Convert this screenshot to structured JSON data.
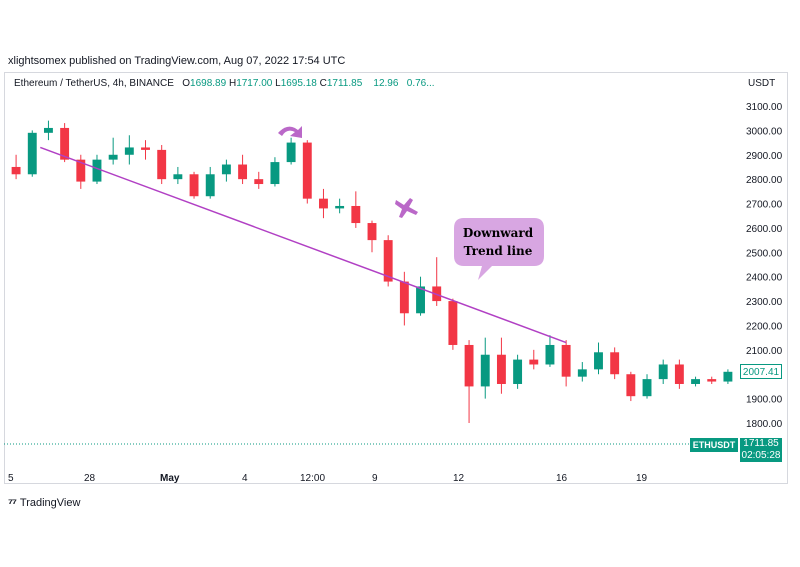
{
  "header": {
    "publisher": "xlightsomex published on TradingView.com, Aug 07, 2022 17:54 UTC"
  },
  "legend": {
    "symbol": "Ethereum / TetherUS, 4h, BINANCE",
    "o_label": "O",
    "o_value": "1698.89",
    "h_label": "H",
    "h_value": "1717.00",
    "l_label": "L",
    "l_value": "1695.18",
    "c_label": "C",
    "c_value": "1711.85",
    "change": "12.96",
    "change_pct": "0.76..."
  },
  "axis": {
    "currency": "USDT"
  },
  "annotation": {
    "line1": "Downward",
    "line2": "Trend line"
  },
  "tags": {
    "symbol": "ETHUSDT",
    "price": "1711.85",
    "countdown": "02:05:28",
    "last_visible": "2007.41"
  },
  "footer": {
    "brand": "TradingView"
  },
  "colors": {
    "up": "#089981",
    "down": "#f23645",
    "trendline": "#b140c4",
    "callout_fill": "#d8a6e2",
    "icon": "#ba68c8"
  },
  "chart_data": {
    "type": "candlestick",
    "y_ticks": [
      "3100.00",
      "3000.00",
      "2900.00",
      "2800.00",
      "2700.00",
      "2600.00",
      "2500.00",
      "2400.00",
      "2300.00",
      "2200.00",
      "2100.00",
      "2000.00",
      "1900.00",
      "1800.00"
    ],
    "ylim": [
      1700,
      3150
    ],
    "x_ticks": [
      "5",
      "28",
      "May",
      "4",
      "12:00",
      "9",
      "12",
      "16",
      "19"
    ],
    "trendline": {
      "start": [
        1,
        2930
      ],
      "end": [
        34,
        2130
      ]
    },
    "candles": [
      {
        "o": 2850,
        "h": 2900,
        "l": 2800,
        "c": 2820
      },
      {
        "o": 2820,
        "h": 3000,
        "l": 2810,
        "c": 2990
      },
      {
        "o": 2990,
        "h": 3040,
        "l": 2960,
        "c": 3010
      },
      {
        "o": 3010,
        "h": 3030,
        "l": 2870,
        "c": 2880
      },
      {
        "o": 2880,
        "h": 2900,
        "l": 2760,
        "c": 2790
      },
      {
        "o": 2790,
        "h": 2900,
        "l": 2780,
        "c": 2880
      },
      {
        "o": 2880,
        "h": 2970,
        "l": 2860,
        "c": 2900
      },
      {
        "o": 2900,
        "h": 2980,
        "l": 2860,
        "c": 2930
      },
      {
        "o": 2930,
        "h": 2960,
        "l": 2880,
        "c": 2920
      },
      {
        "o": 2920,
        "h": 2940,
        "l": 2780,
        "c": 2800
      },
      {
        "o": 2800,
        "h": 2850,
        "l": 2780,
        "c": 2820
      },
      {
        "o": 2820,
        "h": 2830,
        "l": 2720,
        "c": 2730
      },
      {
        "o": 2730,
        "h": 2850,
        "l": 2720,
        "c": 2820
      },
      {
        "o": 2820,
        "h": 2880,
        "l": 2790,
        "c": 2860
      },
      {
        "o": 2860,
        "h": 2900,
        "l": 2780,
        "c": 2800
      },
      {
        "o": 2800,
        "h": 2830,
        "l": 2760,
        "c": 2780
      },
      {
        "o": 2780,
        "h": 2890,
        "l": 2770,
        "c": 2870
      },
      {
        "o": 2870,
        "h": 2970,
        "l": 2860,
        "c": 2950
      },
      {
        "o": 2950,
        "h": 2960,
        "l": 2700,
        "c": 2720
      },
      {
        "o": 2720,
        "h": 2760,
        "l": 2640,
        "c": 2680
      },
      {
        "o": 2680,
        "h": 2720,
        "l": 2660,
        "c": 2690
      },
      {
        "o": 2690,
        "h": 2750,
        "l": 2600,
        "c": 2620
      },
      {
        "o": 2620,
        "h": 2630,
        "l": 2500,
        "c": 2550
      },
      {
        "o": 2550,
        "h": 2570,
        "l": 2360,
        "c": 2380
      },
      {
        "o": 2380,
        "h": 2420,
        "l": 2200,
        "c": 2250
      },
      {
        "o": 2250,
        "h": 2400,
        "l": 2240,
        "c": 2360
      },
      {
        "o": 2360,
        "h": 2480,
        "l": 2280,
        "c": 2300
      },
      {
        "o": 2300,
        "h": 2310,
        "l": 2100,
        "c": 2120
      },
      {
        "o": 2120,
        "h": 2140,
        "l": 1800,
        "c": 1950
      },
      {
        "o": 1950,
        "h": 2150,
        "l": 1900,
        "c": 2080
      },
      {
        "o": 2080,
        "h": 2150,
        "l": 1920,
        "c": 1960
      },
      {
        "o": 1960,
        "h": 2080,
        "l": 1940,
        "c": 2060
      },
      {
        "o": 2060,
        "h": 2100,
        "l": 2020,
        "c": 2040
      },
      {
        "o": 2040,
        "h": 2160,
        "l": 2030,
        "c": 2120
      },
      {
        "o": 2120,
        "h": 2140,
        "l": 1950,
        "c": 1990
      },
      {
        "o": 1990,
        "h": 2050,
        "l": 1970,
        "c": 2020
      },
      {
        "o": 2020,
        "h": 2130,
        "l": 2000,
        "c": 2090
      },
      {
        "o": 2090,
        "h": 2110,
        "l": 1980,
        "c": 2000
      },
      {
        "o": 2000,
        "h": 2010,
        "l": 1890,
        "c": 1910
      },
      {
        "o": 1910,
        "h": 2000,
        "l": 1900,
        "c": 1980
      },
      {
        "o": 1980,
        "h": 2060,
        "l": 1960,
        "c": 2040
      },
      {
        "o": 2040,
        "h": 2060,
        "l": 1940,
        "c": 1960
      },
      {
        "o": 1960,
        "h": 1990,
        "l": 1950,
        "c": 1980
      },
      {
        "o": 1980,
        "h": 1990,
        "l": 1960,
        "c": 1970
      },
      {
        "o": 1970,
        "h": 2020,
        "l": 1960,
        "c": 2010
      }
    ]
  }
}
